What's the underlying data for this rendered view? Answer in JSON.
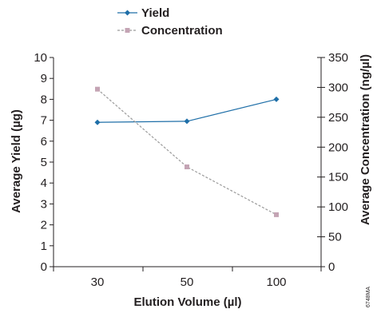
{
  "chart_data": {
    "type": "line",
    "categories": [
      "30",
      "50",
      "100"
    ],
    "series": [
      {
        "name": "Yield",
        "axis": "left",
        "values": [
          6.9,
          6.95,
          8.0
        ],
        "color": "#1f6fa8",
        "marker": "diamond",
        "line": "solid"
      },
      {
        "name": "Concentration",
        "axis": "right",
        "values": [
          297,
          167,
          87
        ],
        "color": "#c4a4b4",
        "marker": "square",
        "line": "dashed"
      }
    ],
    "title": "",
    "xlabel": "Elution Volume (µl)",
    "ylabel": "Average Yield (µg)",
    "y2label": "Average Concentration (ng/µl)",
    "ylim": [
      0,
      10
    ],
    "y2lim": [
      0,
      350
    ],
    "yticks": [
      "0",
      "1",
      "2",
      "3",
      "4",
      "5",
      "6",
      "7",
      "8",
      "9",
      "10"
    ],
    "y2ticks": [
      "0",
      "50",
      "100",
      "150",
      "200",
      "250",
      "300",
      "350"
    ],
    "grid": false,
    "legend": "top-center"
  },
  "figure_code": "6748MA"
}
